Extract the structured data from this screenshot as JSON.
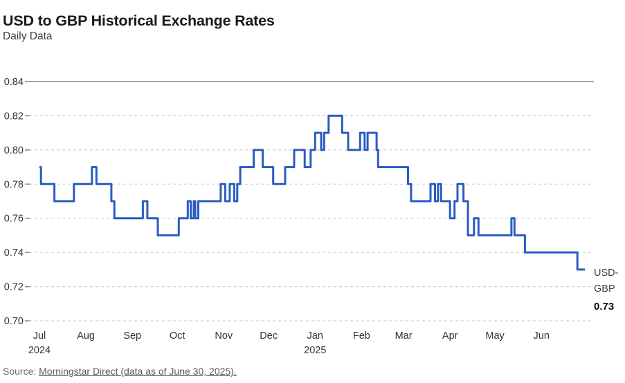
{
  "header": {
    "title": "USD to GBP Historical Exchange Rates",
    "subtitle": "Daily Data"
  },
  "end_label": {
    "line1": "USD-",
    "line2": "GBP",
    "value": "0.73"
  },
  "source": {
    "prefix": "Source: ",
    "link": "Morningstar Direct (data as of June 30, 2025)."
  },
  "chart_data": {
    "type": "line",
    "title": "USD to GBP Historical Exchange Rates",
    "subtitle": "Daily Data",
    "series_name": "USD-GBP",
    "last_value": 0.73,
    "x_start": "2024-07-01",
    "x_end": "2025-06-30",
    "ylim": [
      0.7,
      0.84
    ],
    "y_ticks": [
      0.84,
      0.82,
      0.8,
      0.78,
      0.76,
      0.74,
      0.72,
      0.7
    ],
    "grid": "dashed horizontal, top line solid",
    "legend_position": "right-end-of-line",
    "line_color": "#2a5bc4",
    "grid_color": "#cfcfcf",
    "axis_color": "#8c8c8c",
    "tick_label_color": "#333333",
    "x_ticks": [
      {
        "label": "Jul",
        "year": "2024",
        "date": "2024-07-01"
      },
      {
        "label": "Aug",
        "date": "2024-08-01"
      },
      {
        "label": "Sep",
        "date": "2024-09-01"
      },
      {
        "label": "Oct",
        "date": "2024-10-01"
      },
      {
        "label": "Nov",
        "date": "2024-11-01"
      },
      {
        "label": "Dec",
        "date": "2024-12-01"
      },
      {
        "label": "Jan",
        "year": "2025",
        "date": "2025-01-01"
      },
      {
        "label": "Feb",
        "date": "2025-02-01"
      },
      {
        "label": "Mar",
        "date": "2025-03-01"
      },
      {
        "label": "Apr",
        "date": "2025-04-01"
      },
      {
        "label": "May",
        "date": "2025-05-01"
      },
      {
        "label": "Jun",
        "date": "2025-06-01"
      }
    ],
    "points": [
      [
        "2024-07-01",
        0.79
      ],
      [
        "2024-07-02",
        0.78
      ],
      [
        "2024-07-11",
        0.77
      ],
      [
        "2024-07-24",
        0.78
      ],
      [
        "2024-08-05",
        0.79
      ],
      [
        "2024-08-08",
        0.78
      ],
      [
        "2024-08-18",
        0.77
      ],
      [
        "2024-08-20",
        0.76
      ],
      [
        "2024-09-08",
        0.77
      ],
      [
        "2024-09-11",
        0.76
      ],
      [
        "2024-09-18",
        0.75
      ],
      [
        "2024-10-02",
        0.76
      ],
      [
        "2024-10-08",
        0.77
      ],
      [
        "2024-10-10",
        0.76
      ],
      [
        "2024-10-12",
        0.77
      ],
      [
        "2024-10-13",
        0.76
      ],
      [
        "2024-10-15",
        0.77
      ],
      [
        "2024-10-30",
        0.78
      ],
      [
        "2024-11-02",
        0.77
      ],
      [
        "2024-11-05",
        0.78
      ],
      [
        "2024-11-08",
        0.77
      ],
      [
        "2024-11-10",
        0.78
      ],
      [
        "2024-11-12",
        0.79
      ],
      [
        "2024-11-21",
        0.8
      ],
      [
        "2024-11-27",
        0.79
      ],
      [
        "2024-12-04",
        0.78
      ],
      [
        "2024-12-12",
        0.79
      ],
      [
        "2024-12-18",
        0.8
      ],
      [
        "2024-12-25",
        0.79
      ],
      [
        "2024-12-29",
        0.8
      ],
      [
        "2025-01-01",
        0.81
      ],
      [
        "2025-01-05",
        0.8
      ],
      [
        "2025-01-07",
        0.81
      ],
      [
        "2025-01-10",
        0.82
      ],
      [
        "2025-01-19",
        0.81
      ],
      [
        "2025-01-23",
        0.8
      ],
      [
        "2025-01-31",
        0.81
      ],
      [
        "2025-02-03",
        0.8
      ],
      [
        "2025-02-05",
        0.81
      ],
      [
        "2025-02-11",
        0.8
      ],
      [
        "2025-02-12",
        0.79
      ],
      [
        "2025-03-04",
        0.78
      ],
      [
        "2025-03-06",
        0.77
      ],
      [
        "2025-03-19",
        0.78
      ],
      [
        "2025-03-22",
        0.77
      ],
      [
        "2025-03-24",
        0.78
      ],
      [
        "2025-03-26",
        0.77
      ],
      [
        "2025-04-01",
        0.76
      ],
      [
        "2025-04-04",
        0.77
      ],
      [
        "2025-04-06",
        0.78
      ],
      [
        "2025-04-10",
        0.77
      ],
      [
        "2025-04-13",
        0.75
      ],
      [
        "2025-04-17",
        0.76
      ],
      [
        "2025-04-20",
        0.75
      ],
      [
        "2025-05-12",
        0.76
      ],
      [
        "2025-05-14",
        0.75
      ],
      [
        "2025-05-21",
        0.74
      ],
      [
        "2025-06-25",
        0.73
      ]
    ]
  }
}
